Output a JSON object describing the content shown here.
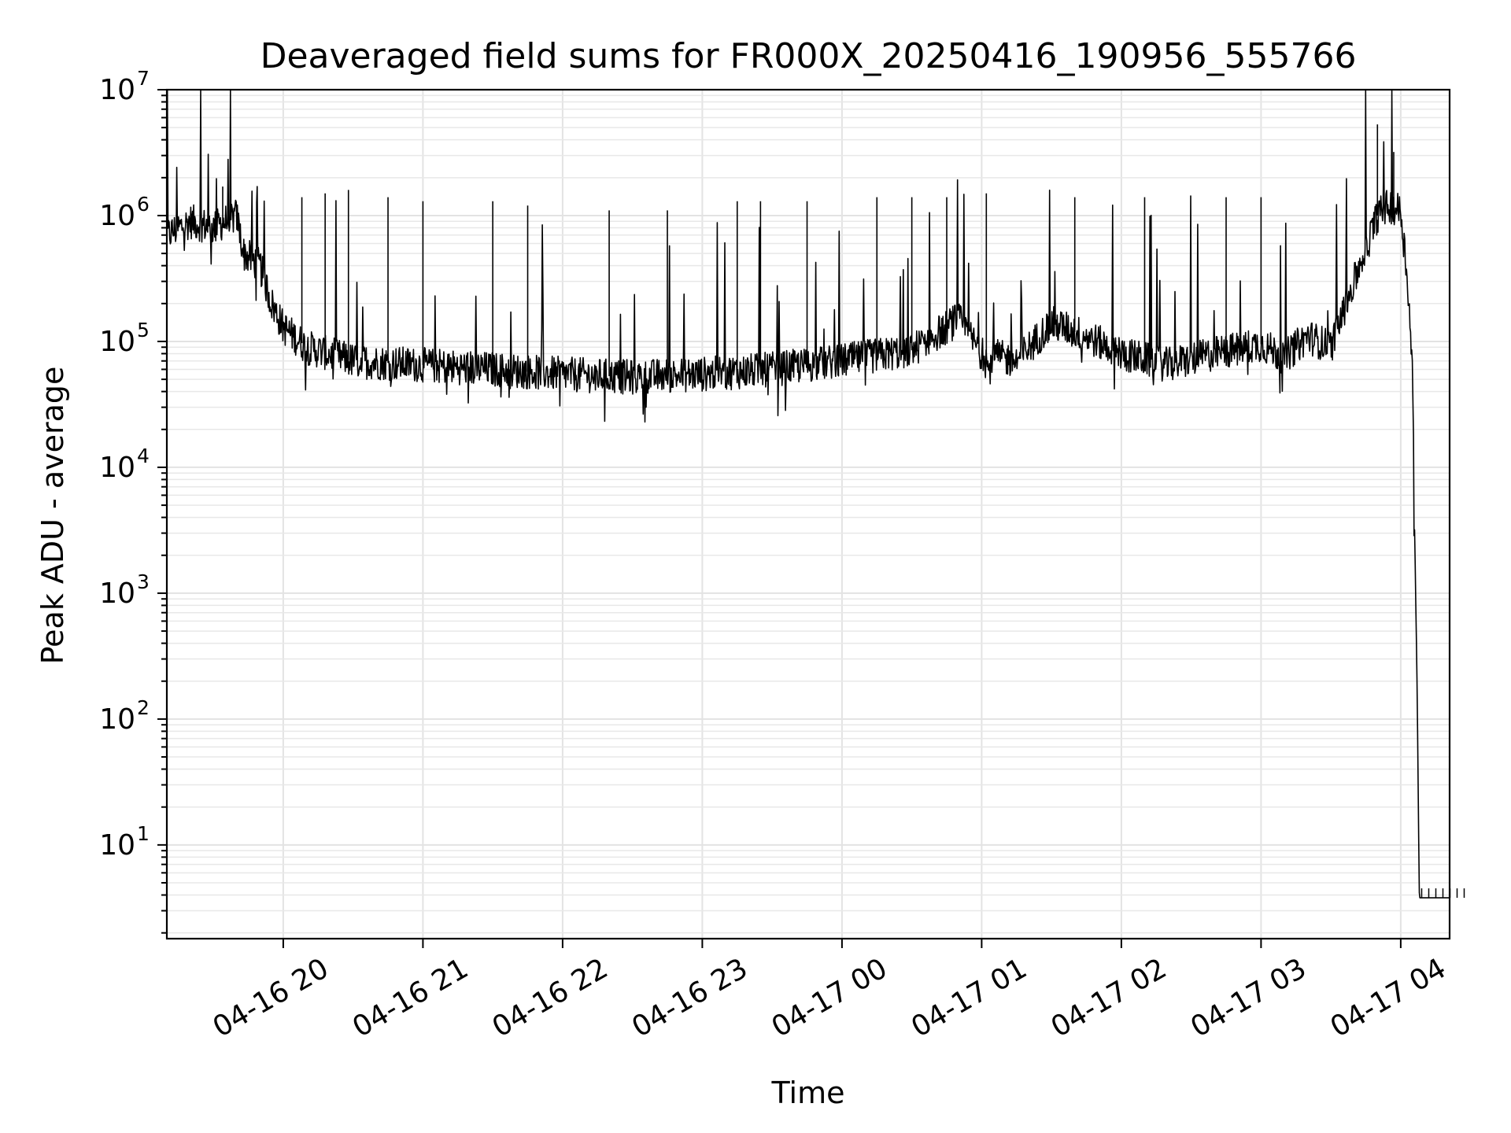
{
  "chart_data": {
    "type": "line",
    "title": "Deaveraged field sums for FR000X_20250416_190956_555766",
    "xlabel": "Time",
    "ylabel": "Peak ADU - average",
    "yscale": "log",
    "grid": true,
    "xlim": [
      "2025-04-16 19:10",
      "2025-04-17 04:21"
    ],
    "ylim": [
      1.8,
      10000000
    ],
    "x_tick_labels": [
      "04-16 20",
      "04-16 21",
      "04-16 22",
      "04-16 23",
      "04-17 00",
      "04-17 01",
      "04-17 02",
      "04-17 03",
      "04-17 04"
    ],
    "x_tick_times": [
      "2025-04-16 20:00",
      "2025-04-16 21:00",
      "2025-04-16 22:00",
      "2025-04-16 23:00",
      "2025-04-17 00:00",
      "2025-04-17 01:00",
      "2025-04-17 02:00",
      "2025-04-17 03:00",
      "2025-04-17 04:00"
    ],
    "y_ticks": [
      {
        "value": 10,
        "base": "10",
        "exp": "1"
      },
      {
        "value": 100,
        "base": "10",
        "exp": "2"
      },
      {
        "value": 1000,
        "base": "10",
        "exp": "3"
      },
      {
        "value": 10000,
        "base": "10",
        "exp": "4"
      },
      {
        "value": 100000,
        "base": "10",
        "exp": "5"
      },
      {
        "value": 1000000,
        "base": "10",
        "exp": "6"
      },
      {
        "value": 10000000,
        "base": "10",
        "exp": "7"
      }
    ],
    "series": [
      {
        "color": "#000000",
        "points": [
          {
            "t": "2025-04-16 19:10",
            "v": 700000
          },
          {
            "t": "2025-04-16 19:20",
            "v": 900000
          },
          {
            "t": "2025-04-16 19:30",
            "v": 800000
          },
          {
            "t": "2025-04-16 19:40",
            "v": 1000000
          },
          {
            "t": "2025-04-16 19:43",
            "v": 500000
          },
          {
            "t": "2025-04-16 19:50",
            "v": 400000
          },
          {
            "t": "2025-04-16 19:55",
            "v": 200000
          },
          {
            "t": "2025-04-16 20:00",
            "v": 130000
          },
          {
            "t": "2025-04-16 20:10",
            "v": 90000
          },
          {
            "t": "2025-04-16 20:30",
            "v": 70000
          },
          {
            "t": "2025-04-16 21:00",
            "v": 65000
          },
          {
            "t": "2025-04-16 21:30",
            "v": 60000
          },
          {
            "t": "2025-04-16 22:00",
            "v": 55000
          },
          {
            "t": "2025-04-16 22:30",
            "v": 52000
          },
          {
            "t": "2025-04-16 23:00",
            "v": 55000
          },
          {
            "t": "2025-04-16 23:30",
            "v": 60000
          },
          {
            "t": "2025-04-17 00:00",
            "v": 70000
          },
          {
            "t": "2025-04-17 00:30",
            "v": 85000
          },
          {
            "t": "2025-04-17 00:50",
            "v": 150000
          },
          {
            "t": "2025-04-17 01:00",
            "v": 80000
          },
          {
            "t": "2025-04-17 01:15",
            "v": 70000
          },
          {
            "t": "2025-04-17 01:30",
            "v": 140000
          },
          {
            "t": "2025-04-17 01:45",
            "v": 110000
          },
          {
            "t": "2025-04-17 02:00",
            "v": 80000
          },
          {
            "t": "2025-04-17 02:20",
            "v": 65000
          },
          {
            "t": "2025-04-17 02:40",
            "v": 80000
          },
          {
            "t": "2025-04-17 03:00",
            "v": 95000
          },
          {
            "t": "2025-04-17 03:10",
            "v": 75000
          },
          {
            "t": "2025-04-17 03:20",
            "v": 110000
          },
          {
            "t": "2025-04-17 03:30",
            "v": 90000
          },
          {
            "t": "2025-04-17 03:40",
            "v": 300000
          },
          {
            "t": "2025-04-17 03:50",
            "v": 1000000
          },
          {
            "t": "2025-04-17 03:55",
            "v": 1200000
          },
          {
            "t": "2025-04-17 04:00",
            "v": 1100000
          },
          {
            "t": "2025-04-17 04:03",
            "v": 300000
          },
          {
            "t": "2025-04-17 04:05",
            "v": 60000
          },
          {
            "t": "2025-04-17 04:06",
            "v": 3000
          },
          {
            "t": "2025-04-17 04:07",
            "v": 200
          },
          {
            "t": "2025-04-17 04:08",
            "v": 3.8
          },
          {
            "t": "2025-04-17 04:21",
            "v": 3.8
          }
        ],
        "spikes": [
          {
            "t": "2025-04-16 19:34",
            "v": 1700000
          },
          {
            "t": "2025-04-16 20:08",
            "v": 1400000
          },
          {
            "t": "2025-04-16 20:18",
            "v": 1500000
          },
          {
            "t": "2025-04-16 20:28",
            "v": 1600000
          },
          {
            "t": "2025-04-16 20:45",
            "v": 1400000
          },
          {
            "t": "2025-04-16 21:00",
            "v": 1300000
          },
          {
            "t": "2025-04-16 21:30",
            "v": 1300000
          },
          {
            "t": "2025-04-16 21:45",
            "v": 1200000
          },
          {
            "t": "2025-04-16 22:20",
            "v": 1100000
          },
          {
            "t": "2025-04-16 22:45",
            "v": 1100000
          },
          {
            "t": "2025-04-16 23:15",
            "v": 1300000
          },
          {
            "t": "2025-04-16 23:25",
            "v": 1300000
          },
          {
            "t": "2025-04-16 23:45",
            "v": 1300000
          },
          {
            "t": "2025-04-17 00:15",
            "v": 1400000
          },
          {
            "t": "2025-04-17 00:30",
            "v": 1400000
          },
          {
            "t": "2025-04-17 00:45",
            "v": 1400000
          },
          {
            "t": "2025-04-17 01:02",
            "v": 1500000
          },
          {
            "t": "2025-04-17 01:40",
            "v": 1400000
          },
          {
            "t": "2025-04-17 02:10",
            "v": 1400000
          },
          {
            "t": "2025-04-17 02:45",
            "v": 1400000
          },
          {
            "t": "2025-04-17 03:00",
            "v": 1400000
          },
          {
            "t": "2025-04-17 03:50",
            "v": 5300000
          },
          {
            "t": "2025-04-17 03:57",
            "v": 3200000
          }
        ]
      }
    ]
  }
}
